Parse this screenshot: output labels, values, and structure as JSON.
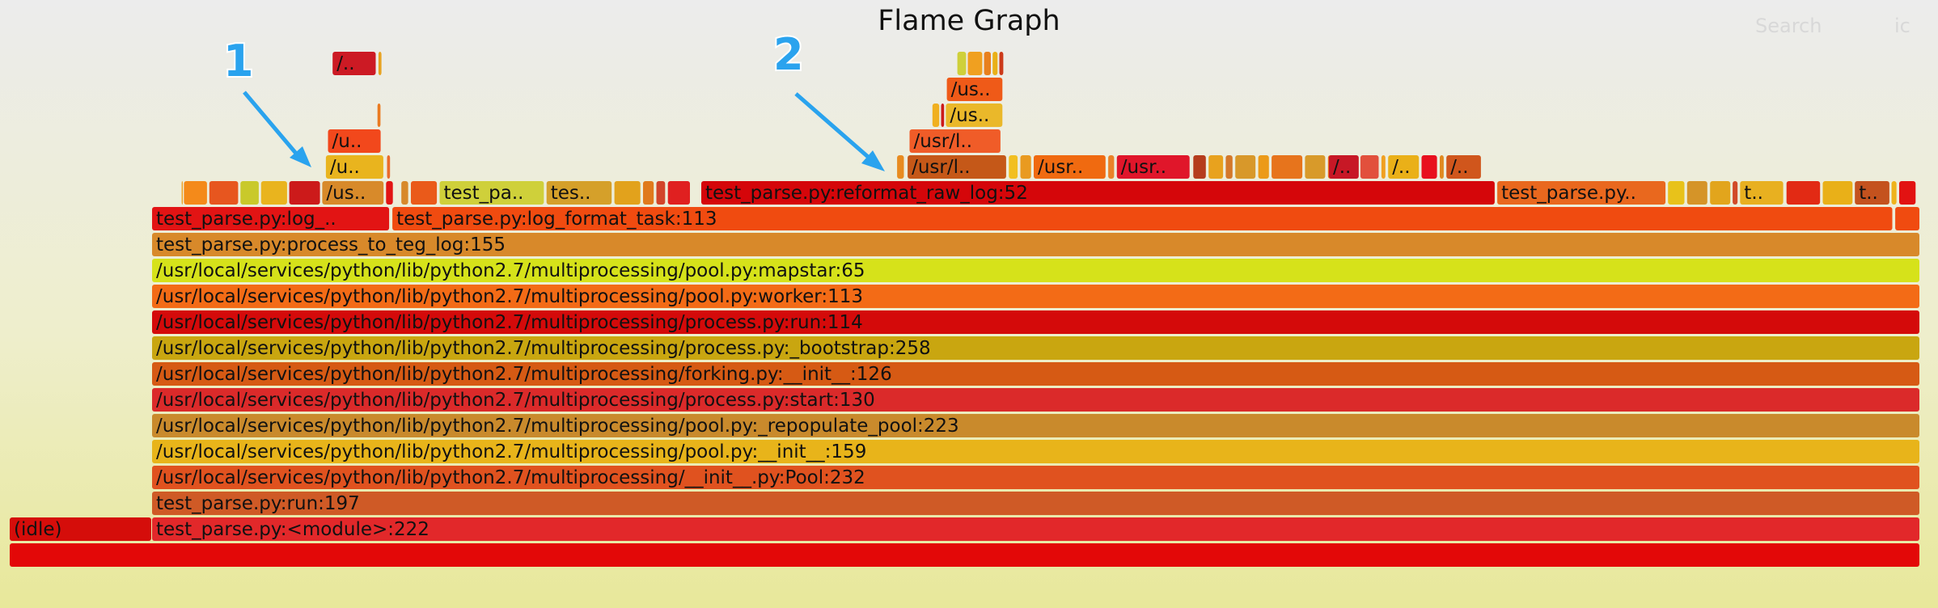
{
  "title": "Flame Graph",
  "controls": {
    "search_label": "Search",
    "ic_label": "ic"
  },
  "callouts": [
    {
      "label": "1"
    },
    {
      "label": "2"
    }
  ],
  "chart_data": {
    "type": "flame",
    "title": "Flame Graph",
    "x_unit": "fraction of total samples",
    "levels": [
      [
        {
          "label": "",
          "start": 0.0,
          "width": 1.0,
          "color": "#e30808"
        }
      ],
      [
        {
          "label": "(idle)",
          "start": 0.0,
          "width": 0.0745,
          "color": "#d50d0a"
        },
        {
          "label": "test_parse.py:<module>:222",
          "start": 0.0745,
          "width": 0.9255,
          "color": "#e2282a"
        }
      ],
      [
        {
          "label": "test_parse.py:run:197",
          "start": 0.0745,
          "width": 0.9255,
          "color": "#cf5a26"
        }
      ],
      [
        {
          "label": "/usr/local/services/python/lib/python2.7/multiprocessing/__init__.py:Pool:232",
          "start": 0.0745,
          "width": 0.9255,
          "color": "#e0521f"
        }
      ],
      [
        {
          "label": "/usr/local/services/python/lib/python2.7/multiprocessing/pool.py:__init__:159",
          "start": 0.0745,
          "width": 0.9255,
          "color": "#e8b41a"
        }
      ],
      [
        {
          "label": "/usr/local/services/python/lib/python2.7/multiprocessing/pool.py:_repopulate_pool:223",
          "start": 0.0745,
          "width": 0.9255,
          "color": "#c98a2c"
        }
      ],
      [
        {
          "label": "/usr/local/services/python/lib/python2.7/multiprocessing/process.py:start:130",
          "start": 0.0745,
          "width": 0.9255,
          "color": "#db2a2a"
        }
      ],
      [
        {
          "label": "/usr/local/services/python/lib/python2.7/multiprocessing/forking.py:__init__:126",
          "start": 0.0745,
          "width": 0.9255,
          "color": "#d65a14"
        }
      ],
      [
        {
          "label": "/usr/local/services/python/lib/python2.7/multiprocessing/process.py:_bootstrap:258",
          "start": 0.0745,
          "width": 0.9255,
          "color": "#c9a610"
        }
      ],
      [
        {
          "label": "/usr/local/services/python/lib/python2.7/multiprocessing/process.py:run:114",
          "start": 0.0745,
          "width": 0.9255,
          "color": "#d40a0a"
        }
      ],
      [
        {
          "label": "/usr/local/services/python/lib/python2.7/multiprocessing/pool.py:worker:113",
          "start": 0.0745,
          "width": 0.9255,
          "color": "#f36b16"
        }
      ],
      [
        {
          "label": "/usr/local/services/python/lib/python2.7/multiprocessing/pool.py:mapstar:65",
          "start": 0.0745,
          "width": 0.9255,
          "color": "#d6e21a"
        }
      ],
      [
        {
          "label": "test_parse.py:process_to_teg_log:155",
          "start": 0.0745,
          "width": 0.9255,
          "color": "#d8892a"
        }
      ],
      [
        {
          "label": "test_parse.py:log_..",
          "start": 0.0745,
          "width": 0.1245,
          "color": "#e21414"
        },
        {
          "label": "test_parse.py:log_format_task:113",
          "start": 0.2003,
          "width": 0.7855,
          "color": "#f04b10"
        },
        {
          "label": "",
          "start": 0.9869,
          "width": 0.0131,
          "color": "#f04b10"
        }
      ],
      [
        {
          "label": "",
          "start": 0.09,
          "width": 0.001,
          "color": "#f0a020"
        },
        {
          "label": "",
          "start": 0.0912,
          "width": 0.0125,
          "color": "#f48a1a"
        },
        {
          "label": "",
          "start": 0.1045,
          "width": 0.0155,
          "color": "#e7561f"
        },
        {
          "label": "",
          "start": 0.1208,
          "width": 0.01,
          "color": "#c9c92a"
        },
        {
          "label": "",
          "start": 0.1316,
          "width": 0.014,
          "color": "#e9b41e"
        },
        {
          "label": "",
          "start": 0.1463,
          "width": 0.0165,
          "color": "#cc1a1a"
        },
        {
          "label": "/us..",
          "start": 0.1636,
          "width": 0.0325,
          "color": "#d88a2a"
        },
        {
          "label": "",
          "start": 0.197,
          "width": 0.004,
          "color": "#e21414"
        },
        {
          "label": "",
          "start": 0.205,
          "width": 0.004,
          "color": "#d8892a"
        },
        {
          "label": "",
          "start": 0.21,
          "width": 0.014,
          "color": "#ea5a1a"
        },
        {
          "label": "test_pa..",
          "start": 0.225,
          "width": 0.055,
          "color": "#cfd03a"
        },
        {
          "label": "tes..",
          "start": 0.281,
          "width": 0.0345,
          "color": "#d5a02a"
        },
        {
          "label": "",
          "start": 0.3165,
          "width": 0.014,
          "color": "#e2a21c"
        },
        {
          "label": "",
          "start": 0.3315,
          "width": 0.006,
          "color": "#e07a1c"
        },
        {
          "label": "",
          "start": 0.3385,
          "width": 0.005,
          "color": "#d2442a"
        },
        {
          "label": "",
          "start": 0.3445,
          "width": 0.012,
          "color": "#e02020"
        },
        {
          "label": "test_parse.py:reformat_raw_log:52",
          "start": 0.362,
          "width": 0.4157,
          "color": "#d5060a"
        },
        {
          "label": "test_parse.py..",
          "start": 0.7786,
          "width": 0.0885,
          "color": "#e9681e"
        },
        {
          "label": "",
          "start": 0.868,
          "width": 0.009,
          "color": "#e8c21a"
        },
        {
          "label": "",
          "start": 0.878,
          "width": 0.011,
          "color": "#d59428"
        },
        {
          "label": "",
          "start": 0.89,
          "width": 0.011,
          "color": "#e2a51c"
        },
        {
          "label": "",
          "start": 0.9018,
          "width": 0.003,
          "color": "#d14a28"
        },
        {
          "label": "t..",
          "start": 0.9057,
          "width": 0.023,
          "color": "#e8b020"
        },
        {
          "label": "",
          "start": 0.93,
          "width": 0.018,
          "color": "#e22a14"
        },
        {
          "label": "",
          "start": 0.949,
          "width": 0.016,
          "color": "#e9b018"
        },
        {
          "label": "t..",
          "start": 0.9658,
          "width": 0.0185,
          "color": "#c4521e"
        },
        {
          "label": "",
          "start": 0.985,
          "width": 0.003,
          "color": "#eeb31c"
        },
        {
          "label": "",
          "start": 0.989,
          "width": 0.009,
          "color": "#e21212"
        }
      ],
      [
        {
          "label": "/u..",
          "start": 0.1655,
          "width": 0.0305,
          "color": "#e9b41e"
        },
        {
          "label": "",
          "start": 0.1975,
          "width": 0.002,
          "color": "#ea6a2c"
        },
        {
          "label": "",
          "start": 0.4645,
          "width": 0.004,
          "color": "#e88b20"
        },
        {
          "label": "/usr/l..",
          "start": 0.47,
          "width": 0.052,
          "color": "#c55818"
        },
        {
          "label": "",
          "start": 0.523,
          "width": 0.005,
          "color": "#f2bf20"
        },
        {
          "label": "",
          "start": 0.529,
          "width": 0.006,
          "color": "#e99a20"
        },
        {
          "label": "/usr..",
          "start": 0.536,
          "width": 0.038,
          "color": "#f06a10"
        },
        {
          "label": "",
          "start": 0.575,
          "width": 0.0035,
          "color": "#ea8228"
        },
        {
          "label": "/usr..",
          "start": 0.5795,
          "width": 0.0385,
          "color": "#e0162a"
        },
        {
          "label": "",
          "start": 0.6195,
          "width": 0.007,
          "color": "#b53c1c"
        },
        {
          "label": "",
          "start": 0.6275,
          "width": 0.008,
          "color": "#e8a21e"
        },
        {
          "label": "",
          "start": 0.6365,
          "width": 0.004,
          "color": "#d4782a"
        },
        {
          "label": "",
          "start": 0.6415,
          "width": 0.011,
          "color": "#d8982a"
        },
        {
          "label": "",
          "start": 0.6535,
          "width": 0.006,
          "color": "#ec9a18"
        },
        {
          "label": "",
          "start": 0.6605,
          "width": 0.0165,
          "color": "#e7741c"
        },
        {
          "label": "",
          "start": 0.678,
          "width": 0.011,
          "color": "#d89a2a"
        },
        {
          "label": "",
          "start": 0.69,
          "width": 0.016,
          "color": "#e87018"
        },
        {
          "label": "/..",
          "start": 0.6905,
          "width": 0.016,
          "color": "#c71826"
        },
        {
          "label": "",
          "start": 0.707,
          "width": 0.01,
          "color": "#e2503c"
        },
        {
          "label": "",
          "start": 0.718,
          "width": 0.0025,
          "color": "#f0a020"
        },
        {
          "label": "/..",
          "start": 0.7215,
          "width": 0.0165,
          "color": "#eab018"
        },
        {
          "label": "",
          "start": 0.739,
          "width": 0.0085,
          "color": "#e8101e"
        },
        {
          "label": "",
          "start": 0.7485,
          "width": 0.0025,
          "color": "#e08a20"
        },
        {
          "label": "/..",
          "start": 0.752,
          "width": 0.0185,
          "color": "#d0561c"
        }
      ],
      [
        {
          "label": "/u..",
          "start": 0.1666,
          "width": 0.028,
          "color": "#f2481c"
        },
        {
          "label": "/usr/l..",
          "start": 0.471,
          "width": 0.048,
          "color": "#f05c28"
        }
      ],
      [
        {
          "label": "",
          "start": 0.483,
          "width": 0.004,
          "color": "#f0b020"
        },
        {
          "label": "",
          "start": 0.4875,
          "width": 0.002,
          "color": "#cc1a1a"
        },
        {
          "label": "/us..",
          "start": 0.49,
          "width": 0.03,
          "color": "#eab82a"
        },
        {
          "label": "",
          "start": 0.1925,
          "width": 0.002,
          "color": "#ea7a20"
        }
      ],
      [
        {
          "label": "/us..",
          "start": 0.4905,
          "width": 0.0295,
          "color": "#ef5a18"
        }
      ],
      [
        {
          "label": "/..",
          "start": 0.169,
          "width": 0.023,
          "color": "#cc1a24"
        },
        {
          "label": "",
          "start": 0.193,
          "width": 0.002,
          "color": "#e8a21e"
        },
        {
          "label": "",
          "start": 0.496,
          "width": 0.005,
          "color": "#cfd03a"
        },
        {
          "label": "",
          "start": 0.5015,
          "width": 0.008,
          "color": "#f0a020"
        },
        {
          "label": "",
          "start": 0.51,
          "width": 0.004,
          "color": "#e8801e"
        },
        {
          "label": "",
          "start": 0.5145,
          "width": 0.003,
          "color": "#e9b018"
        },
        {
          "label": "",
          "start": 0.518,
          "width": 0.0025,
          "color": "#cc3a1a"
        }
      ]
    ]
  }
}
